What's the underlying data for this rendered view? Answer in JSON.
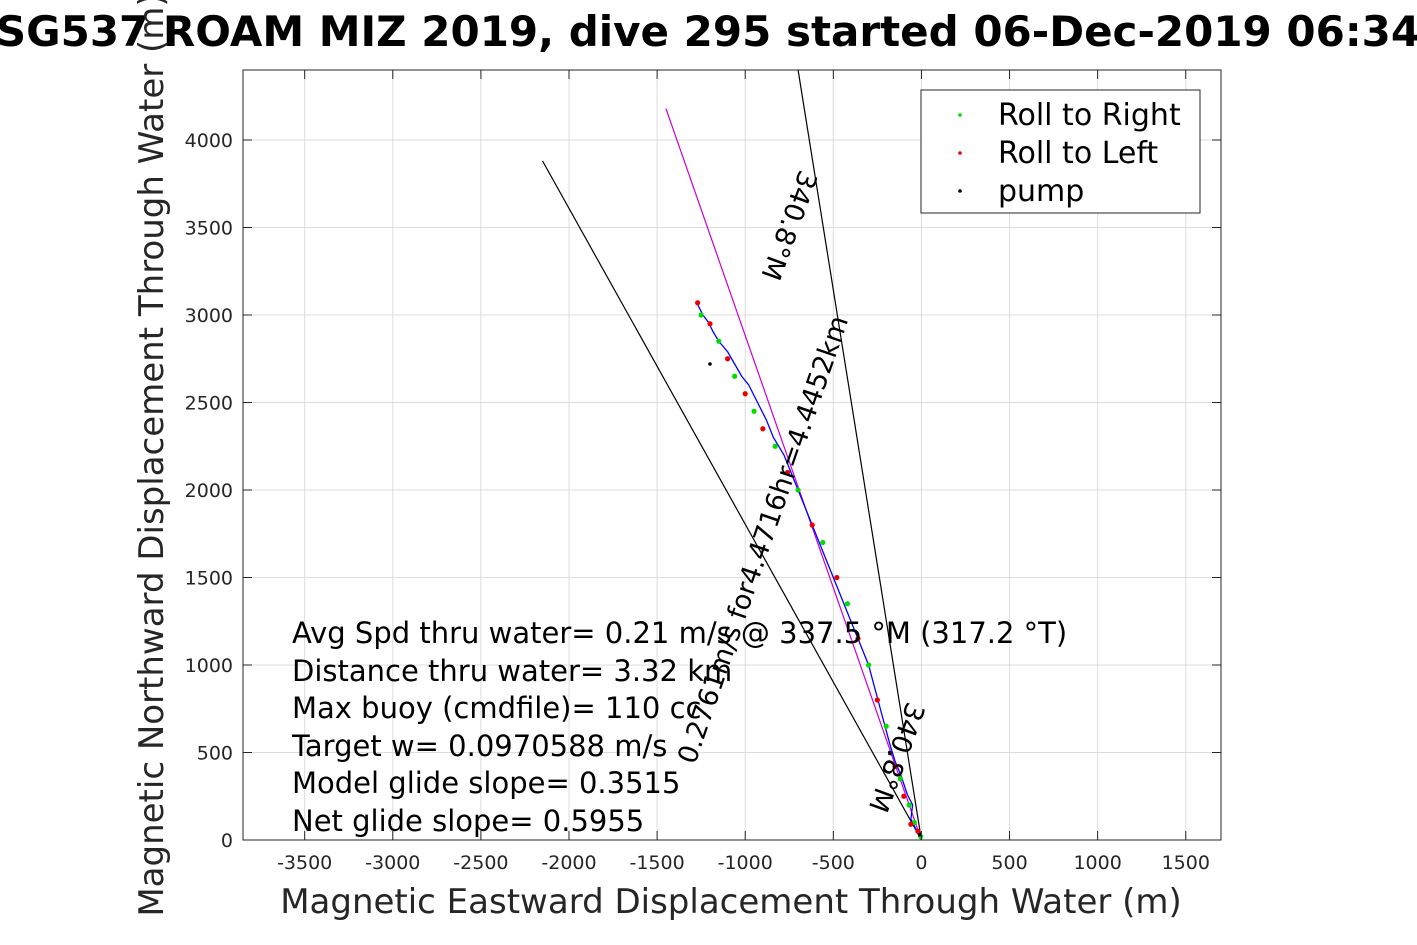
{
  "chart_data": {
    "type": "line",
    "title": "SG537 ROAM MIZ 2019, dive 295 started 06-Dec-2019 06:34",
    "xlabel": "Magnetic Eastward Displacement Through Water (m)",
    "ylabel": "Magnetic Northward Displacement Through Water (m)",
    "xlim": [
      -3850,
      1700
    ],
    "ylim": [
      0,
      4400
    ],
    "xticks": [
      -3500,
      -3000,
      -2500,
      -2000,
      -1500,
      -1000,
      -500,
      0,
      500,
      1000,
      1500
    ],
    "yticks": [
      0,
      500,
      1000,
      1500,
      2000,
      2500,
      3000,
      3500,
      4000
    ],
    "grid": true,
    "legend": {
      "placement": "top-right",
      "entries": [
        {
          "label": "Roll to Right",
          "color": "#00dd00"
        },
        {
          "label": "Roll to Left",
          "color": "#ee0000"
        },
        {
          "label": "pump",
          "color": "#000000"
        }
      ]
    },
    "series": [
      {
        "name": "track",
        "color": "#0000ff",
        "x": [
          0,
          -30,
          -60,
          -50,
          -80,
          -100,
          -120,
          -150,
          -180,
          -220,
          -260,
          -300,
          -360,
          -420,
          -480,
          -540,
          -600,
          -660,
          -720,
          -780,
          -840,
          -880,
          -920,
          -950,
          -980,
          -1020,
          -1060,
          -1100,
          -1150,
          -1180,
          -1210,
          -1240,
          -1270
        ],
        "y": [
          0,
          60,
          120,
          200,
          260,
          320,
          380,
          450,
          550,
          700,
          850,
          1000,
          1150,
          1300,
          1450,
          1600,
          1750,
          1900,
          2050,
          2200,
          2300,
          2400,
          2480,
          2540,
          2600,
          2650,
          2720,
          2790,
          2850,
          2900,
          2960,
          3000,
          3060
        ]
      }
    ],
    "roll_right_points": {
      "x": [
        -5,
        -40,
        -70,
        -120,
        -200,
        -300,
        -420,
        -560,
        -700,
        -830,
        -950,
        -1060,
        -1150,
        -1250
      ],
      "y": [
        20,
        100,
        200,
        350,
        650,
        1000,
        1350,
        1700,
        2000,
        2250,
        2450,
        2650,
        2850,
        3000
      ]
    },
    "roll_left_points": {
      "x": [
        -20,
        -60,
        -100,
        -150,
        -250,
        -360,
        -480,
        -620,
        -760,
        -900,
        -1000,
        -1100,
        -1200,
        -1270
      ],
      "y": [
        50,
        90,
        250,
        420,
        800,
        1150,
        1500,
        1800,
        2100,
        2350,
        2550,
        2750,
        2950,
        3070
      ]
    },
    "pump_points": {
      "x": [
        -10,
        -180,
        -1200
      ],
      "y": [
        30,
        500,
        2720
      ]
    },
    "reference_lines": [
      {
        "color": "#cc00cc",
        "x": [
          0,
          -1450
        ],
        "y": [
          0,
          4180
        ]
      },
      {
        "color": "#000000",
        "x": [
          0,
          -2150
        ],
        "y": [
          0,
          3880
        ]
      },
      {
        "color": "#000000",
        "x": [
          0,
          -700
        ],
        "y": [
          0,
          4400
        ]
      }
    ],
    "line_labels": [
      {
        "text": "0.2761m/s for4.4716hr=4.4452km",
        "x": -850,
        "y": 1700,
        "angle_deg": -71
      },
      {
        "text": "340.8°M",
        "x": -800,
        "y": 3530,
        "angle_deg": 110
      },
      {
        "text": "340.8°M",
        "x": -190,
        "y": 490,
        "angle_deg": 110
      }
    ],
    "annotations": [
      "Avg Spd thru water=  0.21 m/s @ 337.5 °M (317.2 °T)",
      "Distance thru water=  3.32 km",
      "Max buoy (cmdfile)= 110 cc",
      "Target w= 0.0970588 m/s",
      "Model glide slope= 0.3515",
      "Net glide slope= 0.5955"
    ]
  }
}
